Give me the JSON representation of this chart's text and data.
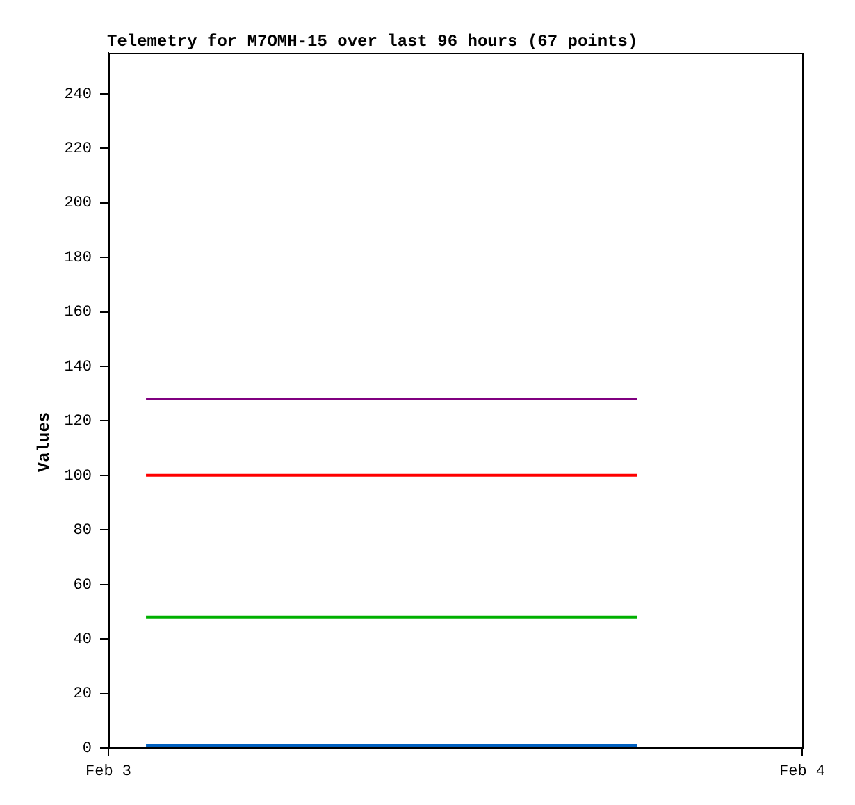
{
  "chart_data": {
    "type": "line",
    "title": "Telemetry for M7OMH-15 over last 96 hours (67 points)",
    "ylabel": "Values",
    "x": [
      "--02-03T01:18",
      "--02-03T18:18"
    ],
    "series": [
      {
        "color": "#800080",
        "values": [
          128,
          128
        ]
      },
      {
        "color": "#ff0000",
        "values": [
          100,
          100
        ]
      },
      {
        "color": "#00b000",
        "values": [
          48,
          48
        ]
      },
      {
        "color": "#0060c0",
        "values": [
          1,
          1
        ]
      },
      {
        "color": "#000000",
        "values": [
          0,
          0
        ]
      }
    ],
    "xlim": [
      "--02-03",
      "--02-04"
    ],
    "xticks": [
      {
        "value": "--02-03",
        "label": "Feb 3"
      },
      {
        "value": "--02-04",
        "label": "Feb 4"
      }
    ],
    "ylim": [
      0,
      255
    ],
    "yticks": [
      0,
      20,
      40,
      60,
      80,
      100,
      120,
      140,
      160,
      180,
      200,
      220,
      240
    ],
    "marker": "none",
    "line_style": "solid",
    "legend": false
  }
}
